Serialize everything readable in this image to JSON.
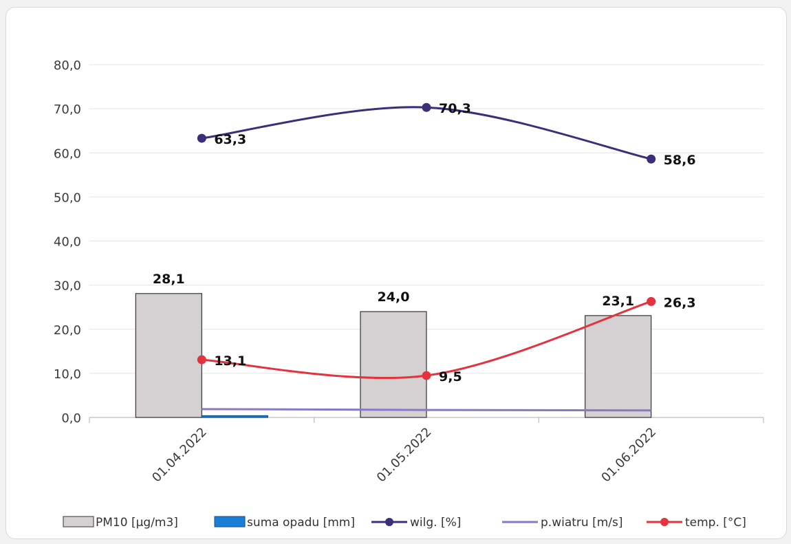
{
  "chart_data": {
    "type": "bar",
    "categories": [
      "01.04.2022",
      "01.05.2022",
      "01.06.2022"
    ],
    "ylim": [
      0,
      80
    ],
    "yticks": [
      "0,0",
      "10,0",
      "20,0",
      "30,0",
      "40,0",
      "50,0",
      "60,0",
      "70,0",
      "80,0"
    ],
    "grid": true,
    "legend_position": "bottom",
    "series": [
      {
        "name": "PM10  [µg/m3]",
        "type": "bar",
        "values": [
          28.1,
          24.0,
          23.1
        ],
        "labels": [
          "28,1",
          "24,0",
          "23,1"
        ],
        "color": "#d5d1d2"
      },
      {
        "name": "suma  opadu [mm]",
        "type": "bar",
        "values": [
          0.4,
          0,
          0
        ],
        "labels": [],
        "color": "#1a7fd4"
      },
      {
        "name": "wilg. [%]",
        "type": "line",
        "values": [
          63.3,
          70.3,
          58.6
        ],
        "labels": [
          "63,3",
          "70,3",
          "58,6"
        ],
        "color": "#3b2f7a"
      },
      {
        "name": "p.wiatru [m/s]",
        "type": "line",
        "values": [
          1.9,
          1.7,
          1.6
        ],
        "labels": [],
        "color": "#8878c6"
      },
      {
        "name": "temp. [°C]",
        "type": "line",
        "values": [
          13.1,
          9.5,
          26.3
        ],
        "labels": [
          "13,1",
          "9,5",
          "26,3"
        ],
        "color": "#e2333f"
      }
    ]
  }
}
